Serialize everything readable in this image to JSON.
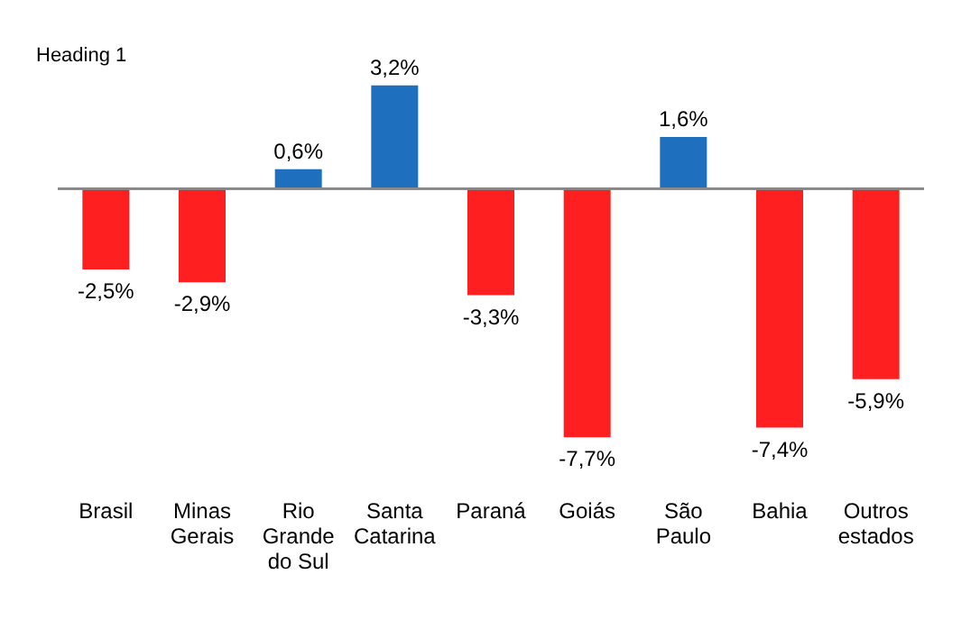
{
  "chart_data": {
    "type": "bar",
    "categories": [
      "Brasil",
      "Minas\nGerais",
      "Rio\nGrande\ndo Sul",
      "Santa\nCatarina",
      "Paraná",
      "Goiás",
      "São\nPaulo",
      "Bahia",
      "Outros\nestados"
    ],
    "values": [
      -2.5,
      -2.9,
      0.6,
      3.2,
      -3.3,
      -7.7,
      1.6,
      -7.4,
      -5.9
    ],
    "colors": [
      "#fe2020",
      "#fe2020",
      "#1f6fbf",
      "#1f6fbf",
      "#fe2020",
      "#fe2020",
      "#1f6fbf",
      "#fe2020",
      "#fe2020"
    ],
    "value_labels": [
      "-2,5%",
      "-2,9%",
      "0,6%",
      "3,2%",
      "-3,3%",
      "-7,7%",
      "1,6%",
      "-7,4%",
      "-5,9%"
    ],
    "annotations": [
      "Heading 1"
    ],
    "grid": false
  }
}
